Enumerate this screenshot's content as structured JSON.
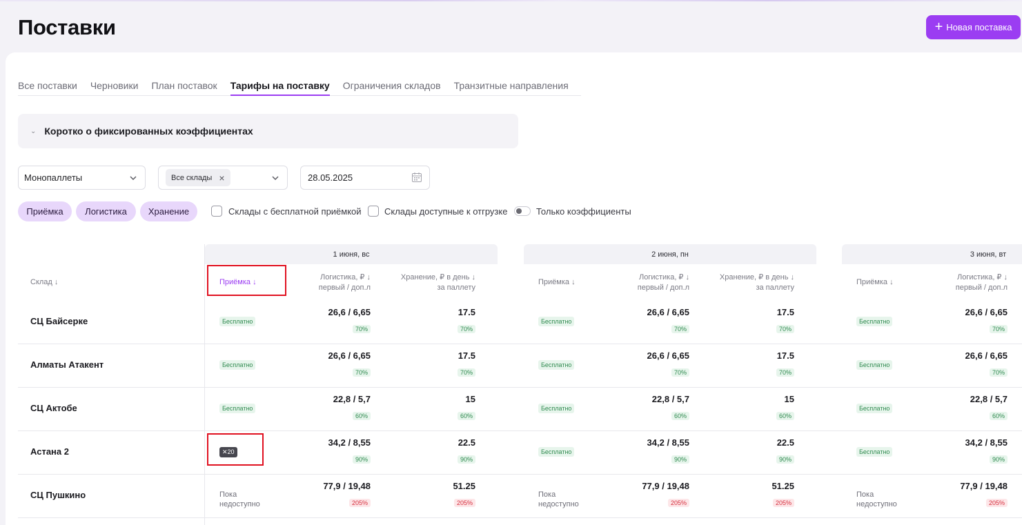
{
  "page": {
    "title": "Поставки",
    "new_button": "Новая поставка"
  },
  "tabs": [
    {
      "label": "Все поставки"
    },
    {
      "label": "Черновики"
    },
    {
      "label": "План поставок"
    },
    {
      "label": "Тарифы на поставку",
      "active": true
    },
    {
      "label": "Ограничения складов"
    },
    {
      "label": "Транзитные направления"
    }
  ],
  "accordion": {
    "label": "Коротко о фиксированных коэффициентах"
  },
  "filters": {
    "supply_type": "Монопаллеты",
    "warehouses_chip": "Все склады",
    "date": "28.05.2025",
    "pills": [
      "Приёмка",
      "Логистика",
      "Хранение"
    ],
    "free_acceptance": "Склады с бесплатной приёмкой",
    "available_for_shipment": "Склады доступные к отгрузке",
    "only_coefficients": "Только коэффициенты"
  },
  "table": {
    "warehouse_header": "Склад",
    "col_acceptance": "Приёмка",
    "col_logistics_1": "Логистика, ₽",
    "col_logistics_2": "первый / доп.л",
    "col_storage_1": "Хранение, ₽ в день",
    "col_storage_2": "за паллету",
    "days": [
      {
        "label": "1 июня, вс"
      },
      {
        "label": "2 июня, пн"
      },
      {
        "label": "3 июня, вт"
      }
    ],
    "rows": [
      {
        "name": "СЦ Байсерке",
        "cells": [
          {
            "acc": "Бесплатно",
            "acc_kind": "free",
            "log": "26,6 / 6,65",
            "log_pct": "70%",
            "stor": "17.5",
            "stor_pct": "70%",
            "pct_kind": "g"
          },
          {
            "acc": "Бесплатно",
            "acc_kind": "free",
            "log": "26,6 / 6,65",
            "log_pct": "70%",
            "stor": "17.5",
            "stor_pct": "70%",
            "pct_kind": "g"
          },
          {
            "acc": "Бесплатно",
            "acc_kind": "free",
            "log": "26,6 / 6,65",
            "log_pct": "70%",
            "pct_kind": "g"
          }
        ]
      },
      {
        "name": "Алматы Атакент",
        "cells": [
          {
            "acc": "Бесплатно",
            "acc_kind": "free",
            "log": "26,6 / 6,65",
            "log_pct": "70%",
            "stor": "17.5",
            "stor_pct": "70%",
            "pct_kind": "g"
          },
          {
            "acc": "Бесплатно",
            "acc_kind": "free",
            "log": "26,6 / 6,65",
            "log_pct": "70%",
            "stor": "17.5",
            "stor_pct": "70%",
            "pct_kind": "g"
          },
          {
            "acc": "Бесплатно",
            "acc_kind": "free",
            "log": "26,6 / 6,65",
            "log_pct": "70%",
            "pct_kind": "g"
          }
        ]
      },
      {
        "name": "СЦ Актобе",
        "cells": [
          {
            "acc": "Бесплатно",
            "acc_kind": "free",
            "log": "22,8 / 5,7",
            "log_pct": "60%",
            "stor": "15",
            "stor_pct": "60%",
            "pct_kind": "g"
          },
          {
            "acc": "Бесплатно",
            "acc_kind": "free",
            "log": "22,8 / 5,7",
            "log_pct": "60%",
            "stor": "15",
            "stor_pct": "60%",
            "pct_kind": "g"
          },
          {
            "acc": "Бесплатно",
            "acc_kind": "free",
            "log": "22,8 / 5,7",
            "log_pct": "60%",
            "pct_kind": "g"
          }
        ]
      },
      {
        "name": "Астана 2",
        "cells": [
          {
            "acc": "✕20",
            "acc_kind": "x",
            "log": "34,2 / 8,55",
            "log_pct": "90%",
            "stor": "22.5",
            "stor_pct": "90%",
            "pct_kind": "g"
          },
          {
            "acc": "Бесплатно",
            "acc_kind": "free",
            "log": "34,2 / 8,55",
            "log_pct": "90%",
            "stor": "22.5",
            "stor_pct": "90%",
            "pct_kind": "g"
          },
          {
            "acc": "Бесплатно",
            "acc_kind": "free",
            "log": "34,2 / 8,55",
            "log_pct": "90%",
            "pct_kind": "g"
          }
        ]
      },
      {
        "name": "СЦ Пушкино",
        "cells": [
          {
            "acc": "Пока недоступно",
            "acc_kind": "na",
            "log": "77,9 / 19,48",
            "log_pct": "205%",
            "stor": "51.25",
            "stor_pct": "205%",
            "pct_kind": "r"
          },
          {
            "acc": "Пока недоступно",
            "acc_kind": "na",
            "log": "77,9 / 19,48",
            "log_pct": "205%",
            "stor": "51.25",
            "stor_pct": "205%",
            "pct_kind": "r"
          },
          {
            "acc": "Пока недоступно",
            "acc_kind": "na",
            "log": "77,9 / 19,48",
            "log_pct": "205%",
            "pct_kind": "r"
          }
        ]
      }
    ]
  },
  "icons": [
    "plus-icon",
    "chevron-down-icon",
    "close-icon",
    "calendar-icon",
    "sort-arrow-icon"
  ],
  "colors": {
    "accent": "#9b3df2",
    "pill_bg": "#e8d7fb",
    "free_green": "#2f8a4f",
    "danger_red": "#d6303f",
    "highlight": "#e0101f"
  }
}
